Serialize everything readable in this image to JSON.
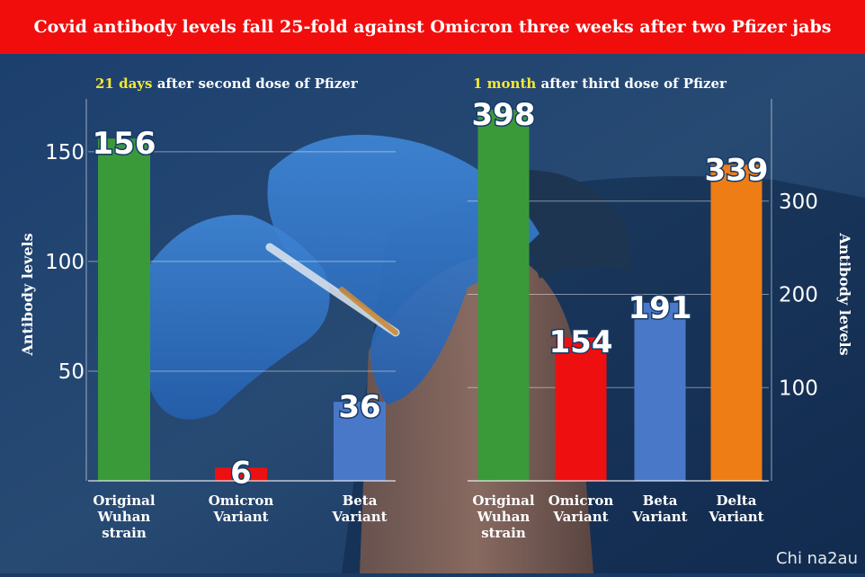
{
  "banner": {
    "title": "Covid antibody levels fall 25-fold against Omicron three weeks after two Pfizer jabs"
  },
  "watermark": "Chi na2au",
  "colors": {
    "banner": "#f20d0d",
    "green": "#3a9a3a",
    "red": "#ee1010",
    "blue": "#4a78c9",
    "orange": "#ee7d16",
    "highlight": "#f5e733"
  },
  "chart_data": [
    {
      "type": "bar",
      "title_highlight": "21 days",
      "title_rest": " after second dose of Pfizer",
      "ylabel": "Antibody levels",
      "ylim": [
        0,
        170
      ],
      "yticks": [
        50,
        100,
        150
      ],
      "axis_side": "left",
      "categories": [
        [
          "Original",
          "Wuhan",
          "strain"
        ],
        [
          "Omicron",
          "Variant"
        ],
        [
          "Beta",
          "Variant"
        ]
      ],
      "values": [
        156,
        6,
        36
      ],
      "value_labels": [
        "156",
        "6",
        "36"
      ],
      "colors": [
        "#3a9a3a",
        "#ee1010",
        "#4a78c9"
      ]
    },
    {
      "type": "bar",
      "title_highlight": "1 month",
      "title_rest": " after third dose of Pfizer",
      "ylabel": "Antibody levels",
      "ylim": [
        0,
        400
      ],
      "yticks": [
        100,
        200,
        300
      ],
      "axis_side": "right",
      "categories": [
        [
          "Original",
          "Wuhan",
          "strain"
        ],
        [
          "Omicron",
          "Variant"
        ],
        [
          "Beta",
          "Variant"
        ],
        [
          "Delta",
          "Variant"
        ]
      ],
      "values": [
        398,
        154,
        191,
        339
      ],
      "value_labels": [
        "398",
        "154",
        "191",
        "339"
      ],
      "colors": [
        "#3a9a3a",
        "#ee1010",
        "#4a78c9",
        "#ee7d16"
      ]
    }
  ]
}
